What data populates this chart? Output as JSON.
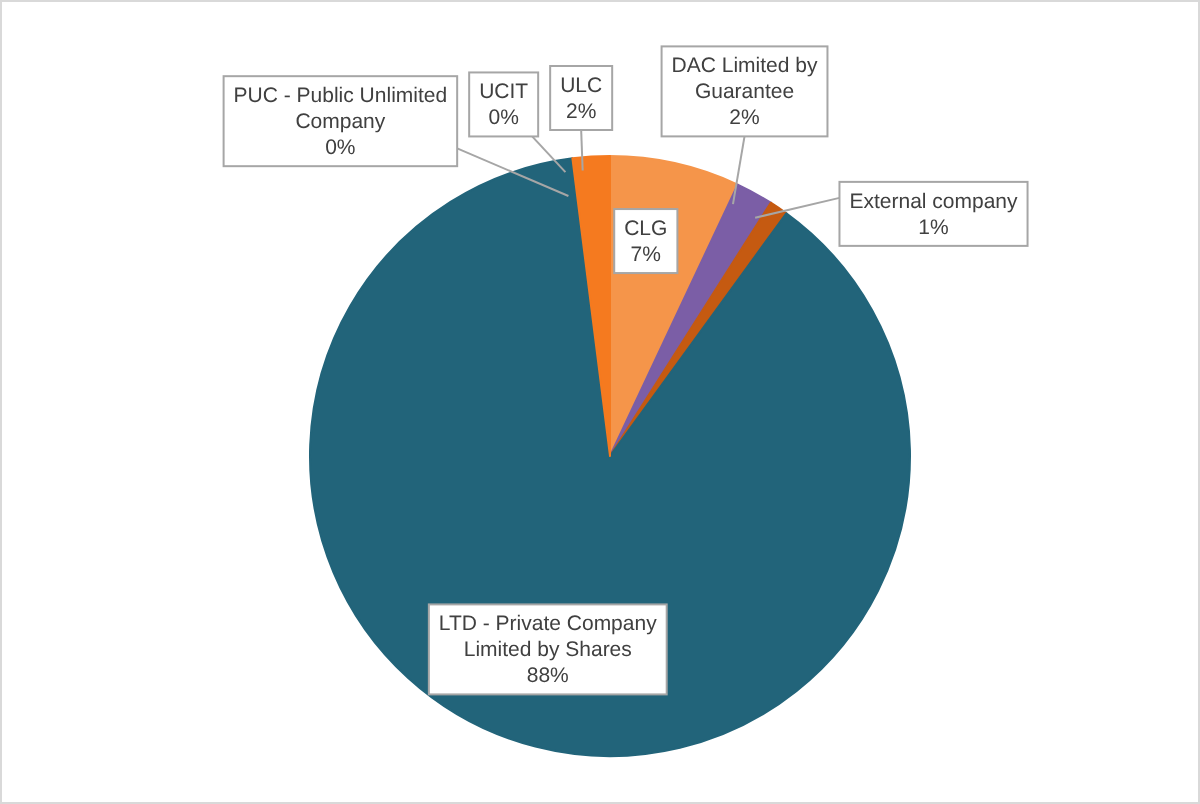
{
  "chart_data": {
    "type": "pie",
    "categories": [
      "CLG",
      "DAC Limited by Guarantee",
      "External company",
      "LTD - Private Company Limited by Shares",
      "PUC - Public Unlimited Company",
      "UCIT",
      "ULC"
    ],
    "values": [
      7,
      2,
      1,
      88,
      0,
      0,
      2
    ],
    "value_labels": [
      "7%",
      "2%",
      "1%",
      "88%",
      "0%",
      "0%",
      "2%"
    ],
    "colors": [
      "#f5954a",
      "#7b5ea6",
      "#c55a11",
      "#22647a",
      "#5b4a9e",
      "#2f4f8f",
      "#f57a1f"
    ]
  }
}
